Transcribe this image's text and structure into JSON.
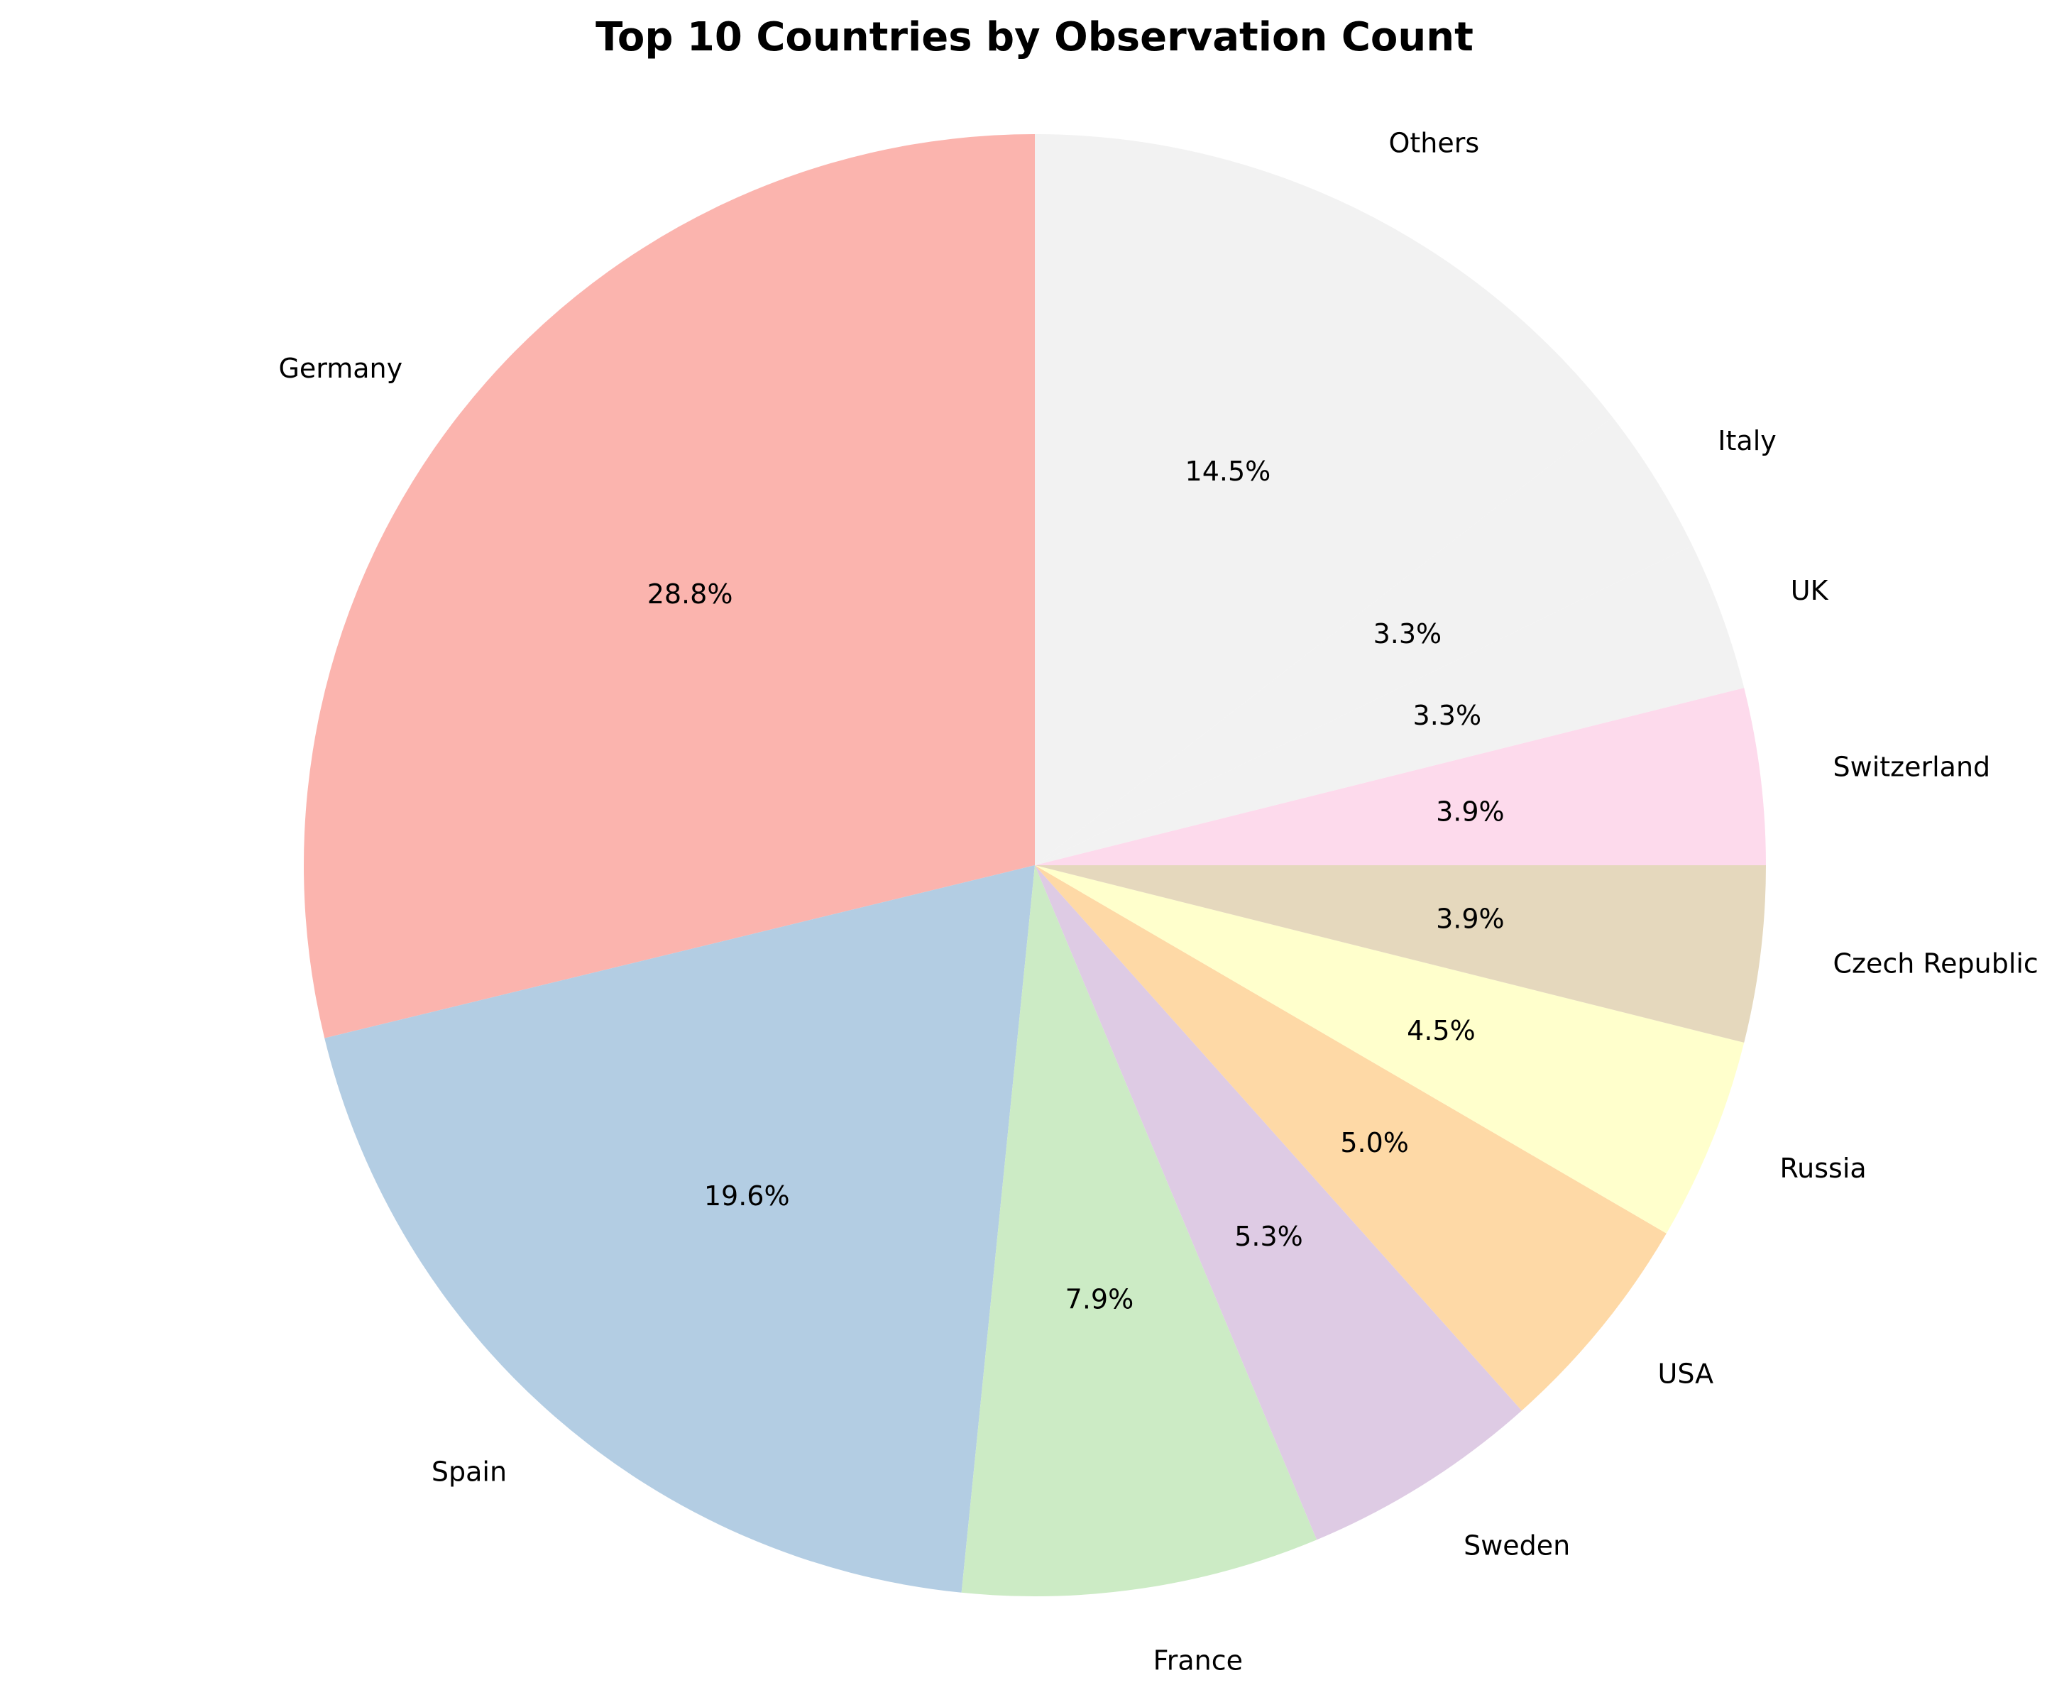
{
  "chart_data": {
    "type": "pie",
    "title": "Top 10 Countries by Observation Count",
    "slices": [
      {
        "label": "Germany",
        "value": 28.8,
        "pct_label": "28.8%",
        "color": "#fbb4ae"
      },
      {
        "label": "Spain",
        "value": 19.6,
        "pct_label": "19.6%",
        "color": "#b3cde3"
      },
      {
        "label": "France",
        "value": 7.9,
        "pct_label": "7.9%",
        "color": "#ccebc5"
      },
      {
        "label": "Sweden",
        "value": 5.3,
        "pct_label": "5.3%",
        "color": "#decbe4"
      },
      {
        "label": "USA",
        "value": 5.0,
        "pct_label": "5.0%",
        "color": "#fed9a6"
      },
      {
        "label": "Russia",
        "value": 4.5,
        "pct_label": "4.5%",
        "color": "#ffffcc"
      },
      {
        "label": "Czech Republic",
        "value": 3.9,
        "pct_label": "3.9%",
        "color": "#e5d8bd"
      },
      {
        "label": "Switzerland",
        "value": 3.9,
        "pct_label": "3.9%",
        "color": "#fddaec"
      },
      {
        "label": "UK",
        "value": 3.3,
        "pct_label": "3.3%",
        "color": "#f2f2f2"
      },
      {
        "label": "Italy",
        "value": 3.3,
        "pct_label": "3.3%",
        "color": "#f2f2f2"
      },
      {
        "label": "Others",
        "value": 14.5,
        "pct_label": "14.5%",
        "color": "#f2f2f2"
      }
    ],
    "start_angle_deg": 90,
    "direction": "counterclockwise",
    "legend": "none"
  }
}
